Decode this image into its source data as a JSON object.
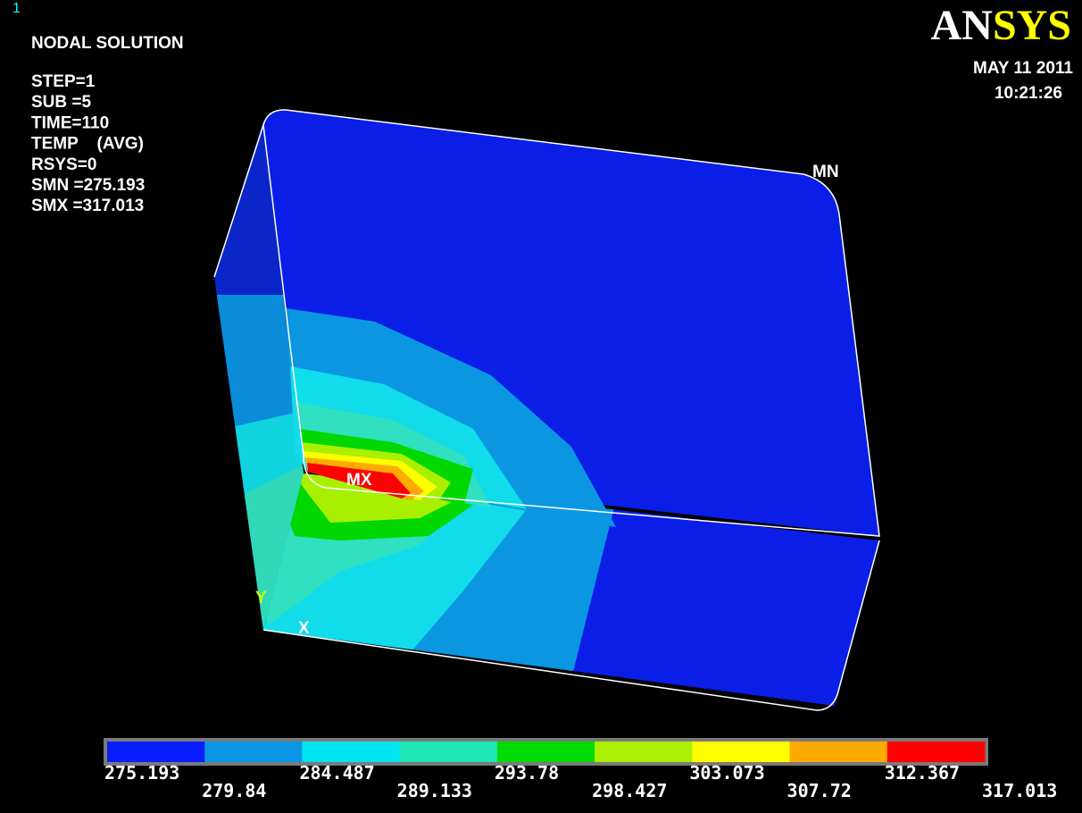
{
  "plot_number": "1",
  "header": {
    "title": "NODAL SOLUTION",
    "lines": [
      "STEP=1",
      "SUB =5",
      "TIME=110",
      "TEMP    (AVG)",
      "RSYS=0",
      "SMN =275.193",
      "SMX =317.013"
    ]
  },
  "logo": {
    "part1": "AN",
    "part2": "SYS"
  },
  "date": "MAY 11 2011",
  "time": "10:21:26",
  "labels": {
    "min": "MN",
    "max": "MX",
    "y_axis": "Y",
    "x_axis": "X"
  },
  "legend": {
    "colors": [
      "#0a1eff",
      "#0a96e6",
      "#00e6f0",
      "#1ee6b4",
      "#00dc00",
      "#aaf000",
      "#ffff00",
      "#ffaa00",
      "#ff0000"
    ],
    "values": [
      "275.193",
      "279.84",
      "284.487",
      "289.133",
      "293.78",
      "298.427",
      "303.073",
      "307.72",
      "312.367",
      "317.013"
    ]
  }
}
